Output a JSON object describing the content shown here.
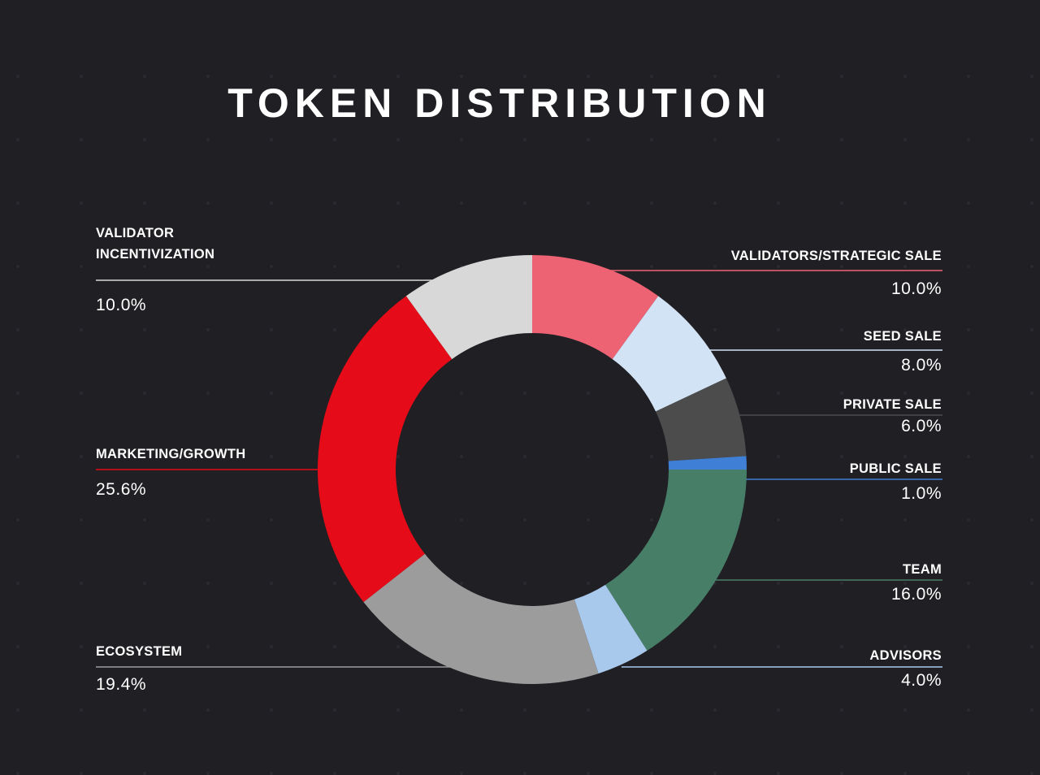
{
  "chart_data": {
    "type": "pie",
    "title": "TOKEN DISTRIBUTION",
    "categories": [
      "VALIDATORS/STRATEGIC SALE",
      "SEED SALE",
      "PRIVATE SALE",
      "PUBLIC SALE",
      "TEAM",
      "ADVISORS",
      "ECOSYSTEM",
      "MARKETING/GROWTH",
      "VALIDATOR\nINCENTIVIZATION"
    ],
    "values": [
      10.0,
      8.0,
      6.0,
      1.0,
      16.0,
      4.0,
      19.4,
      25.6,
      10.0
    ],
    "value_labels": [
      "10.0%",
      "8.0%",
      "6.0%",
      "1.0%",
      "16.0%",
      "4.0%",
      "19.4%",
      "25.6%",
      "10.0%"
    ],
    "colors": [
      "#ed6374",
      "#d3e3f6",
      "#4c4c4c",
      "#3f7fd5",
      "#477e68",
      "#a8c8ec",
      "#9c9c9c",
      "#e60b18",
      "#d8d8d8"
    ],
    "donut": true
  }
}
